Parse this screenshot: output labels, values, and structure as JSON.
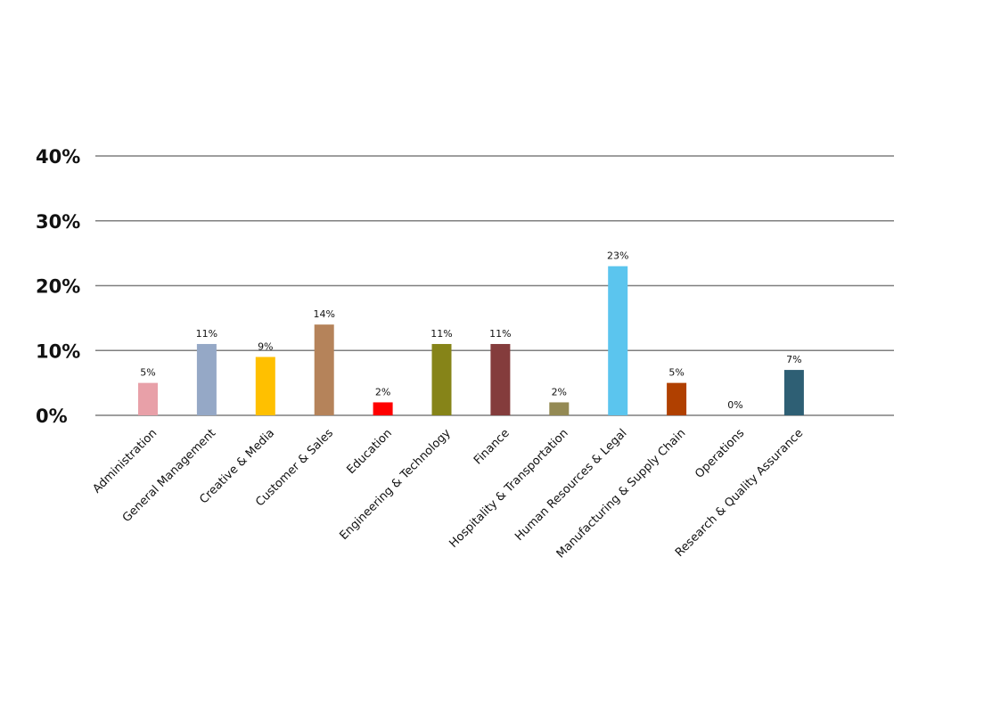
{
  "chart_data": {
    "type": "bar",
    "categories": [
      "Administration",
      "General Management",
      "Creative & Media",
      "Customer & Sales",
      "Education",
      "Engineering & Technology",
      "Finance",
      "Hospitality & Transportation",
      "Human Resources & Legal",
      "Manufacturing & Supply Chain",
      "Operations",
      "Research & Quality Assurance"
    ],
    "values": [
      5,
      11,
      9,
      14,
      2,
      11,
      11,
      2,
      23,
      5,
      0,
      7
    ],
    "value_labels": [
      "5%",
      "11%",
      "9%",
      "14%",
      "2%",
      "11%",
      "11%",
      "2%",
      "23%",
      "5%",
      "0%",
      "7%"
    ],
    "colors": [
      "#e8a0a8",
      "#95a8c6",
      "#ffc000",
      "#b5835a",
      "#ff0000",
      "#868418",
      "#843c3c",
      "#948a54",
      "#5bc5ee",
      "#b04000",
      "#ffffff",
      "#2e5f74"
    ],
    "ylim": [
      0,
      40
    ],
    "yticks": [
      {
        "value": 0,
        "label": "0%"
      },
      {
        "value": 10,
        "label": "10%"
      },
      {
        "value": 20,
        "label": "20%"
      },
      {
        "value": 30,
        "label": "30%"
      },
      {
        "value": 40,
        "label": "40%"
      }
    ],
    "grid": true
  }
}
